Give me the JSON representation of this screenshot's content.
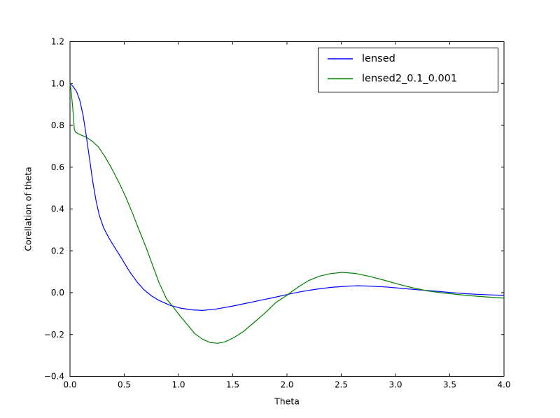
{
  "figure": {
    "background": "#ffffff",
    "axes_color": "#000000",
    "text_color": "#000000"
  },
  "chart_data": {
    "type": "line",
    "title": "",
    "xlabel": "Theta",
    "ylabel": "Corellation of theta",
    "xlim": [
      0.0,
      4.0
    ],
    "ylim": [
      -0.4,
      1.2
    ],
    "grid": false,
    "xticks": {
      "values": [
        0.0,
        0.5,
        1.0,
        1.5,
        2.0,
        2.5,
        3.0,
        3.5,
        4.0
      ],
      "labels": [
        "0.0",
        "0.5",
        "1.0",
        "1.5",
        "2.0",
        "2.5",
        "3.0",
        "3.5",
        "4.0"
      ]
    },
    "yticks": {
      "values": [
        -0.4,
        -0.2,
        0.0,
        0.2,
        0.4,
        0.6,
        0.8,
        1.0,
        1.2
      ],
      "labels": [
        "−0.4",
        "−0.2",
        "0.0",
        "0.2",
        "0.4",
        "0.6",
        "0.8",
        "1.0",
        "1.2"
      ]
    },
    "legend": {
      "position": "upper right",
      "frame": true,
      "entries": [
        {
          "label": "lensed",
          "color": "#0000ff"
        },
        {
          "label": "lensed2_0.1_0.001",
          "color": "#008000"
        }
      ]
    },
    "series": [
      {
        "name": "lensed",
        "color": "#0000ff",
        "points": [
          [
            0.0,
            1.0
          ],
          [
            0.03,
            0.985
          ],
          [
            0.06,
            0.962
          ],
          [
            0.09,
            0.92
          ],
          [
            0.12,
            0.85
          ],
          [
            0.15,
            0.75
          ],
          [
            0.18,
            0.64
          ],
          [
            0.21,
            0.53
          ],
          [
            0.24,
            0.44
          ],
          [
            0.27,
            0.37
          ],
          [
            0.31,
            0.31
          ],
          [
            0.36,
            0.26
          ],
          [
            0.42,
            0.21
          ],
          [
            0.48,
            0.16
          ],
          [
            0.55,
            0.1
          ],
          [
            0.62,
            0.05
          ],
          [
            0.68,
            0.015
          ],
          [
            0.75,
            -0.015
          ],
          [
            0.82,
            -0.037
          ],
          [
            0.92,
            -0.06
          ],
          [
            1.02,
            -0.074
          ],
          [
            1.12,
            -0.082
          ],
          [
            1.22,
            -0.085
          ],
          [
            1.35,
            -0.078
          ],
          [
            1.5,
            -0.064
          ],
          [
            1.62,
            -0.051
          ],
          [
            1.75,
            -0.037
          ],
          [
            1.88,
            -0.023
          ],
          [
            2.0,
            -0.009
          ],
          [
            2.12,
            0.004
          ],
          [
            2.25,
            0.015
          ],
          [
            2.4,
            0.025
          ],
          [
            2.55,
            0.031
          ],
          [
            2.65,
            0.033
          ],
          [
            2.78,
            0.031
          ],
          [
            2.92,
            0.027
          ],
          [
            3.05,
            0.021
          ],
          [
            3.2,
            0.014
          ],
          [
            3.35,
            0.008
          ],
          [
            3.5,
            0.001
          ],
          [
            3.65,
            -0.005
          ],
          [
            3.8,
            -0.009
          ],
          [
            4.0,
            -0.013
          ]
        ]
      },
      {
        "name": "lensed2_0.1_0.001",
        "color": "#008000",
        "points": [
          [
            0.0,
            1.0
          ],
          [
            0.01,
            0.965
          ],
          [
            0.025,
            0.885
          ],
          [
            0.04,
            0.78
          ],
          [
            0.05,
            0.768
          ],
          [
            0.08,
            0.758
          ],
          [
            0.12,
            0.75
          ],
          [
            0.16,
            0.74
          ],
          [
            0.2,
            0.726
          ],
          [
            0.26,
            0.698
          ],
          [
            0.32,
            0.652
          ],
          [
            0.38,
            0.598
          ],
          [
            0.45,
            0.528
          ],
          [
            0.51,
            0.462
          ],
          [
            0.57,
            0.388
          ],
          [
            0.63,
            0.308
          ],
          [
            0.7,
            0.218
          ],
          [
            0.76,
            0.133
          ],
          [
            0.82,
            0.049
          ],
          [
            0.89,
            -0.03
          ],
          [
            0.96,
            -0.075
          ],
          [
            1.02,
            -0.115
          ],
          [
            1.09,
            -0.158
          ],
          [
            1.15,
            -0.196
          ],
          [
            1.22,
            -0.222
          ],
          [
            1.29,
            -0.238
          ],
          [
            1.36,
            -0.242
          ],
          [
            1.43,
            -0.235
          ],
          [
            1.51,
            -0.215
          ],
          [
            1.6,
            -0.185
          ],
          [
            1.7,
            -0.141
          ],
          [
            1.8,
            -0.096
          ],
          [
            1.9,
            -0.046
          ],
          [
            2.0,
            -0.012
          ],
          [
            2.07,
            0.015
          ],
          [
            2.13,
            0.036
          ],
          [
            2.2,
            0.058
          ],
          [
            2.3,
            0.079
          ],
          [
            2.4,
            0.091
          ],
          [
            2.51,
            0.097
          ],
          [
            2.63,
            0.092
          ],
          [
            2.76,
            0.078
          ],
          [
            2.9,
            0.059
          ],
          [
            3.03,
            0.04
          ],
          [
            3.16,
            0.023
          ],
          [
            3.3,
            0.008
          ],
          [
            3.43,
            -0.001
          ],
          [
            3.56,
            -0.008
          ],
          [
            3.7,
            -0.015
          ],
          [
            3.85,
            -0.021
          ],
          [
            4.0,
            -0.026
          ]
        ]
      }
    ]
  }
}
